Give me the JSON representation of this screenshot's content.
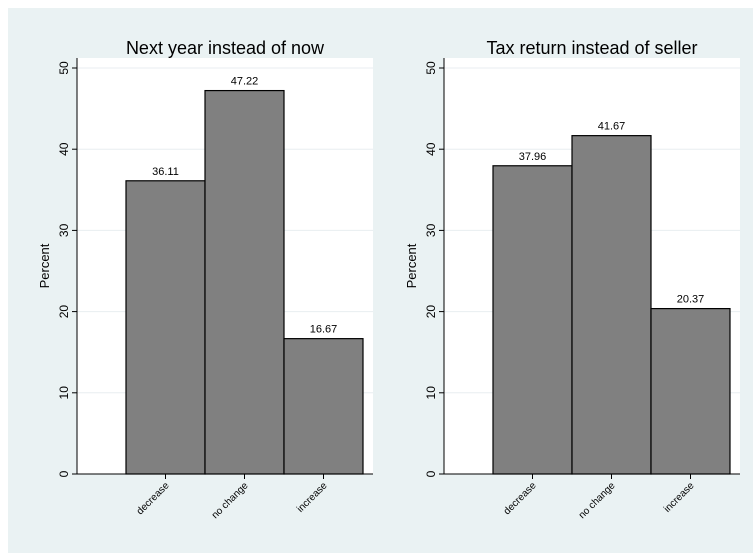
{
  "chart_data": [
    {
      "type": "bar",
      "title": "Next year instead of now",
      "ylabel": "Percent",
      "xlabel": "",
      "categories": [
        "decrease",
        "no change",
        "increase"
      ],
      "values": [
        36.11,
        47.22,
        16.67
      ],
      "value_labels": [
        "36.11",
        "47.22",
        "16.67"
      ],
      "ylim": [
        0,
        50
      ],
      "yticks": [
        0,
        10,
        20,
        30,
        40,
        50
      ],
      "ytick_labels": [
        "0",
        "10",
        "20",
        "30",
        "40",
        "50"
      ],
      "grid": true,
      "bar_color": "#808080",
      "plot_background": "#ffffff",
      "figure_background": "#eaf2f3"
    },
    {
      "type": "bar",
      "title": "Tax return instead of seller",
      "ylabel": "Percent",
      "xlabel": "",
      "categories": [
        "decrease",
        "no change",
        "increase"
      ],
      "values": [
        37.96,
        41.67,
        20.37
      ],
      "value_labels": [
        "37.96",
        "41.67",
        "20.37"
      ],
      "ylim": [
        0,
        50
      ],
      "yticks": [
        0,
        10,
        20,
        30,
        40,
        50
      ],
      "ytick_labels": [
        "0",
        "10",
        "20",
        "30",
        "40",
        "50"
      ],
      "grid": true,
      "bar_color": "#808080",
      "plot_background": "#ffffff",
      "figure_background": "#eaf2f3"
    }
  ]
}
